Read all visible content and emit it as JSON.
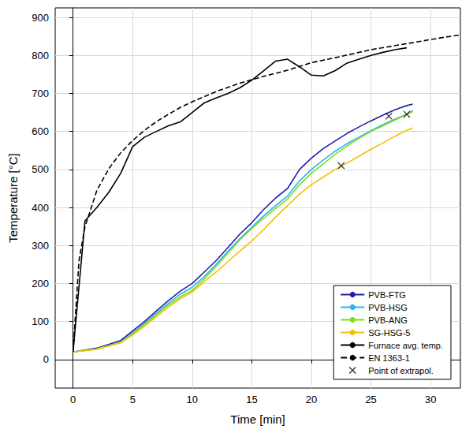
{
  "chart_data": {
    "type": "line",
    "x_label": "Time [min]",
    "y_label": "Temperature [°C]",
    "xlim": [
      -1.5,
      32.5
    ],
    "ylim": [
      -75,
      925
    ],
    "xticks": [
      0,
      5,
      10,
      15,
      20,
      25,
      30
    ],
    "yticks": [
      0,
      100,
      200,
      300,
      400,
      500,
      600,
      700,
      800,
      900
    ],
    "grid": true,
    "legend": "bottom-right",
    "series": [
      {
        "name": "PVB-FTG",
        "color": "#1f1fa8",
        "line_style": "solid",
        "x": [
          0,
          2,
          4,
          5,
          6,
          7,
          8,
          9,
          10,
          11,
          12,
          13,
          14,
          15,
          16,
          17,
          18,
          19,
          20,
          21,
          22,
          23,
          24,
          25,
          26,
          27,
          28,
          28.5
        ],
        "values": [
          20,
          30,
          50,
          75,
          100,
          128,
          155,
          180,
          200,
          230,
          260,
          295,
          330,
          360,
          395,
          425,
          450,
          500,
          530,
          555,
          575,
          595,
          612,
          628,
          643,
          657,
          668,
          672
        ]
      },
      {
        "name": "PVB-HSG",
        "color": "#2ab4f0",
        "line_style": "solid",
        "x": [
          0,
          2,
          4,
          5,
          6,
          7,
          8,
          9,
          10,
          11,
          12,
          13,
          14,
          15,
          16,
          17,
          18,
          19,
          20,
          21,
          22,
          23,
          24,
          25,
          26,
          27,
          28,
          28.5
        ],
        "values": [
          20,
          28,
          46,
          70,
          95,
          122,
          148,
          172,
          190,
          218,
          250,
          285,
          318,
          348,
          378,
          405,
          430,
          470,
          500,
          525,
          548,
          568,
          585,
          602,
          618,
          632,
          645,
          655
        ]
      },
      {
        "name": "PVB-ANG",
        "color": "#7fdc1e",
        "line_style": "solid",
        "x": [
          0,
          2,
          4,
          5,
          6,
          7,
          8,
          9,
          10,
          11,
          12,
          13,
          14,
          15,
          16,
          17,
          18,
          19,
          20,
          21,
          22,
          23,
          24,
          25,
          26,
          27,
          28,
          28.5
        ],
        "values": [
          20,
          28,
          45,
          68,
          92,
          118,
          143,
          165,
          182,
          212,
          245,
          280,
          315,
          345,
          372,
          398,
          422,
          460,
          490,
          515,
          540,
          562,
          582,
          600,
          615,
          630,
          645,
          652
        ]
      },
      {
        "name": "SG-HSG-5",
        "color": "#f5c000",
        "line_style": "solid",
        "x": [
          0,
          2,
          4,
          5,
          6,
          7,
          8,
          9,
          10,
          11,
          12,
          13,
          14,
          15,
          16,
          17,
          18,
          19,
          20,
          21,
          22,
          23,
          24,
          25,
          26,
          27,
          28,
          28.5
        ],
        "values": [
          20,
          27,
          44,
          65,
          88,
          113,
          138,
          160,
          178,
          205,
          230,
          258,
          285,
          312,
          342,
          375,
          405,
          435,
          460,
          480,
          500,
          517,
          535,
          553,
          570,
          587,
          603,
          609
        ]
      },
      {
        "name": "Furnace avg. temp.",
        "color": "#000000",
        "line_style": "solid",
        "x": [
          0,
          1,
          2,
          3,
          4,
          5,
          6,
          7,
          8,
          9,
          10,
          11,
          12,
          13,
          14,
          15,
          16,
          17,
          18,
          19,
          20,
          21,
          22,
          23,
          24,
          25,
          26,
          27,
          28
        ],
        "values": [
          20,
          365,
          400,
          440,
          490,
          560,
          585,
          600,
          615,
          625,
          650,
          675,
          688,
          700,
          715,
          735,
          760,
          785,
          790,
          770,
          748,
          746,
          760,
          780,
          790,
          800,
          808,
          815,
          820
        ]
      },
      {
        "name": "EN 1363-1",
        "color": "#000000",
        "line_style": "dashed",
        "x": [
          0,
          0.5,
          1,
          2,
          3,
          4,
          5,
          6,
          7,
          8,
          9,
          10,
          12,
          14,
          16,
          18,
          20,
          22,
          25,
          28,
          31,
          32.5
        ],
        "values": [
          20,
          261,
          349,
          445,
          502,
          544,
          576,
          603,
          626,
          645,
          663,
          678,
          705,
          727,
          745,
          761,
          781,
          794,
          815,
          831,
          847,
          854
        ]
      },
      {
        "name": "Point of extrapol.",
        "color": "#000000",
        "type": "scatter",
        "marker": "x",
        "x": [
          26.5,
          28,
          22.5
        ],
        "values": [
          640,
          645,
          510
        ]
      }
    ]
  }
}
